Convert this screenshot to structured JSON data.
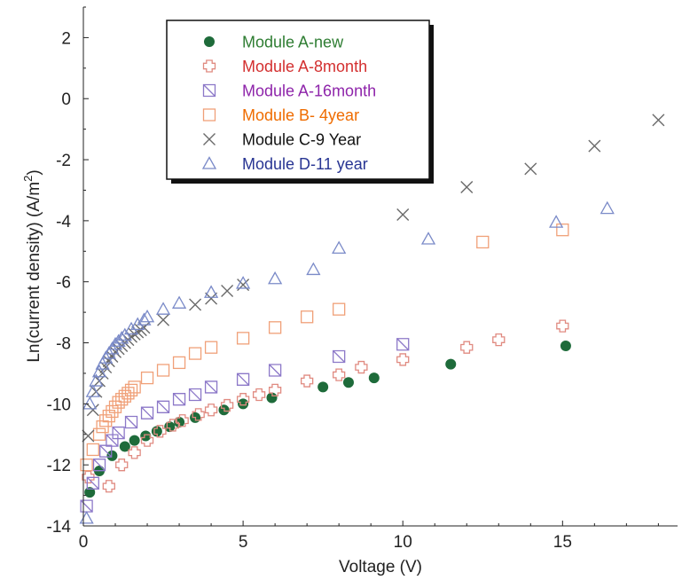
{
  "chart_data": {
    "type": "scatter",
    "xlabel": "Voltage (V)",
    "ylabel": "Ln(current density)  (A/m",
    "ylabel_sup": "2",
    "ylabel_close": ")",
    "xlim": [
      0,
      18.6
    ],
    "ylim": [
      -14,
      3
    ],
    "xticks": [
      0,
      5,
      10,
      15
    ],
    "yticks": [
      2,
      0,
      -2,
      -4,
      -6,
      -8,
      -10,
      -12,
      -14
    ],
    "xtick_labels": [
      "0",
      "5",
      "10",
      "15"
    ],
    "ytick_labels": [
      "2",
      "0",
      "-2",
      "-4",
      "-6",
      "-8",
      "-10",
      "-12",
      "-14"
    ],
    "legend_position": "top-left",
    "series": [
      {
        "name": "Module A-new",
        "marker": "circle",
        "color": "#1e6b3a",
        "text_color": "#2e7d32",
        "points": [
          [
            0.2,
            -12.9
          ],
          [
            0.5,
            -12.2
          ],
          [
            0.9,
            -11.7
          ],
          [
            1.3,
            -11.4
          ],
          [
            1.6,
            -11.2
          ],
          [
            1.95,
            -11.05
          ],
          [
            2.3,
            -10.9
          ],
          [
            2.7,
            -10.75
          ],
          [
            3.0,
            -10.6
          ],
          [
            3.5,
            -10.45
          ],
          [
            4.4,
            -10.2
          ],
          [
            5.0,
            -10.0
          ],
          [
            5.9,
            -9.8
          ],
          [
            7.5,
            -9.45
          ],
          [
            8.3,
            -9.3
          ],
          [
            9.1,
            -9.15
          ],
          [
            11.5,
            -8.7
          ],
          [
            15.1,
            -8.1
          ]
        ]
      },
      {
        "name": "Module A-8month",
        "marker": "plus",
        "color": "#e08a80",
        "text_color": "#d32f2f",
        "points": [
          [
            0.15,
            -12.4
          ],
          [
            0.8,
            -12.7
          ],
          [
            1.2,
            -12.0
          ],
          [
            1.6,
            -11.6
          ],
          [
            2.0,
            -11.2
          ],
          [
            2.4,
            -10.9
          ],
          [
            2.8,
            -10.7
          ],
          [
            3.1,
            -10.55
          ],
          [
            3.6,
            -10.35
          ],
          [
            4.0,
            -10.2
          ],
          [
            4.5,
            -10.05
          ],
          [
            5.0,
            -9.85
          ],
          [
            5.5,
            -9.7
          ],
          [
            6.0,
            -9.55
          ],
          [
            7.0,
            -9.25
          ],
          [
            8.0,
            -9.05
          ],
          [
            8.7,
            -8.8
          ],
          [
            10.0,
            -8.55
          ],
          [
            12.0,
            -8.15
          ],
          [
            13.0,
            -7.9
          ],
          [
            15.0,
            -7.45
          ]
        ]
      },
      {
        "name": "Module A-16month",
        "marker": "square-x",
        "color": "#8c78c8",
        "text_color": "#8e24aa",
        "points": [
          [
            0.1,
            -13.35
          ],
          [
            0.3,
            -12.6
          ],
          [
            0.5,
            -12.0
          ],
          [
            0.7,
            -11.55
          ],
          [
            0.9,
            -11.2
          ],
          [
            1.1,
            -10.95
          ],
          [
            1.5,
            -10.6
          ],
          [
            2.0,
            -10.3
          ],
          [
            2.5,
            -10.1
          ],
          [
            3.0,
            -9.85
          ],
          [
            3.5,
            -9.7
          ],
          [
            4.0,
            -9.45
          ],
          [
            5.0,
            -9.2
          ],
          [
            6.0,
            -8.9
          ],
          [
            8.0,
            -8.45
          ],
          [
            10.0,
            -8.05
          ]
        ]
      },
      {
        "name": "Module B- 4year",
        "marker": "square",
        "color": "#f0a078",
        "text_color": "#ef6c00",
        "points": [
          [
            0.1,
            -12.0
          ],
          [
            0.3,
            -11.5
          ],
          [
            0.5,
            -11.0
          ],
          [
            0.6,
            -10.75
          ],
          [
            0.7,
            -10.55
          ],
          [
            0.8,
            -10.4
          ],
          [
            0.9,
            -10.25
          ],
          [
            1.0,
            -10.1
          ],
          [
            1.1,
            -9.95
          ],
          [
            1.2,
            -9.85
          ],
          [
            1.3,
            -9.75
          ],
          [
            1.4,
            -9.65
          ],
          [
            1.5,
            -9.55
          ],
          [
            1.6,
            -9.45
          ],
          [
            2.0,
            -9.15
          ],
          [
            2.5,
            -8.9
          ],
          [
            3.0,
            -8.65
          ],
          [
            3.5,
            -8.35
          ],
          [
            4.0,
            -8.15
          ],
          [
            5.0,
            -7.85
          ],
          [
            6.0,
            -7.5
          ],
          [
            7.0,
            -7.15
          ],
          [
            8.0,
            -6.9
          ],
          [
            12.5,
            -4.7
          ],
          [
            15.0,
            -4.3
          ]
        ]
      },
      {
        "name": "Module C-9 Year",
        "marker": "cross",
        "color": "#6a6a6a",
        "text_color": "#111111",
        "points": [
          [
            0.15,
            -11.05
          ],
          [
            0.3,
            -10.2
          ],
          [
            0.4,
            -9.6
          ],
          [
            0.5,
            -9.25
          ],
          [
            0.6,
            -9.0
          ],
          [
            0.7,
            -8.8
          ],
          [
            0.8,
            -8.6
          ],
          [
            0.9,
            -8.45
          ],
          [
            1.0,
            -8.3
          ],
          [
            1.1,
            -8.2
          ],
          [
            1.2,
            -8.1
          ],
          [
            1.3,
            -8.0
          ],
          [
            1.4,
            -7.9
          ],
          [
            1.5,
            -7.8
          ],
          [
            1.6,
            -7.72
          ],
          [
            1.7,
            -7.65
          ],
          [
            1.8,
            -7.58
          ],
          [
            1.9,
            -7.5
          ],
          [
            2.5,
            -7.25
          ],
          [
            3.5,
            -6.75
          ],
          [
            4.0,
            -6.55
          ],
          [
            4.5,
            -6.3
          ],
          [
            5.0,
            -6.1
          ],
          [
            10.0,
            -3.8
          ],
          [
            12.0,
            -2.9
          ],
          [
            14.0,
            -2.3
          ],
          [
            16.0,
            -1.55
          ],
          [
            18.0,
            -0.7
          ]
        ]
      },
      {
        "name": "Module D-11 year",
        "marker": "triangle",
        "color": "#7a8ac8",
        "text_color": "#283593",
        "points": [
          [
            0.1,
            -13.75
          ],
          [
            0.2,
            -10.0
          ],
          [
            0.3,
            -9.6
          ],
          [
            0.4,
            -9.25
          ],
          [
            0.5,
            -8.95
          ],
          [
            0.6,
            -8.7
          ],
          [
            0.7,
            -8.5
          ],
          [
            0.8,
            -8.35
          ],
          [
            0.9,
            -8.2
          ],
          [
            1.0,
            -8.05
          ],
          [
            1.1,
            -7.95
          ],
          [
            1.2,
            -7.85
          ],
          [
            1.3,
            -7.75
          ],
          [
            1.5,
            -7.55
          ],
          [
            1.7,
            -7.4
          ],
          [
            1.9,
            -7.25
          ],
          [
            2.0,
            -7.15
          ],
          [
            2.5,
            -6.9
          ],
          [
            3.0,
            -6.7
          ],
          [
            4.0,
            -6.35
          ],
          [
            5.0,
            -6.05
          ],
          [
            6.0,
            -5.9
          ],
          [
            7.2,
            -5.6
          ],
          [
            8.0,
            -4.9
          ],
          [
            10.8,
            -4.6
          ],
          [
            14.8,
            -4.05
          ],
          [
            16.4,
            -3.6
          ]
        ]
      }
    ]
  }
}
